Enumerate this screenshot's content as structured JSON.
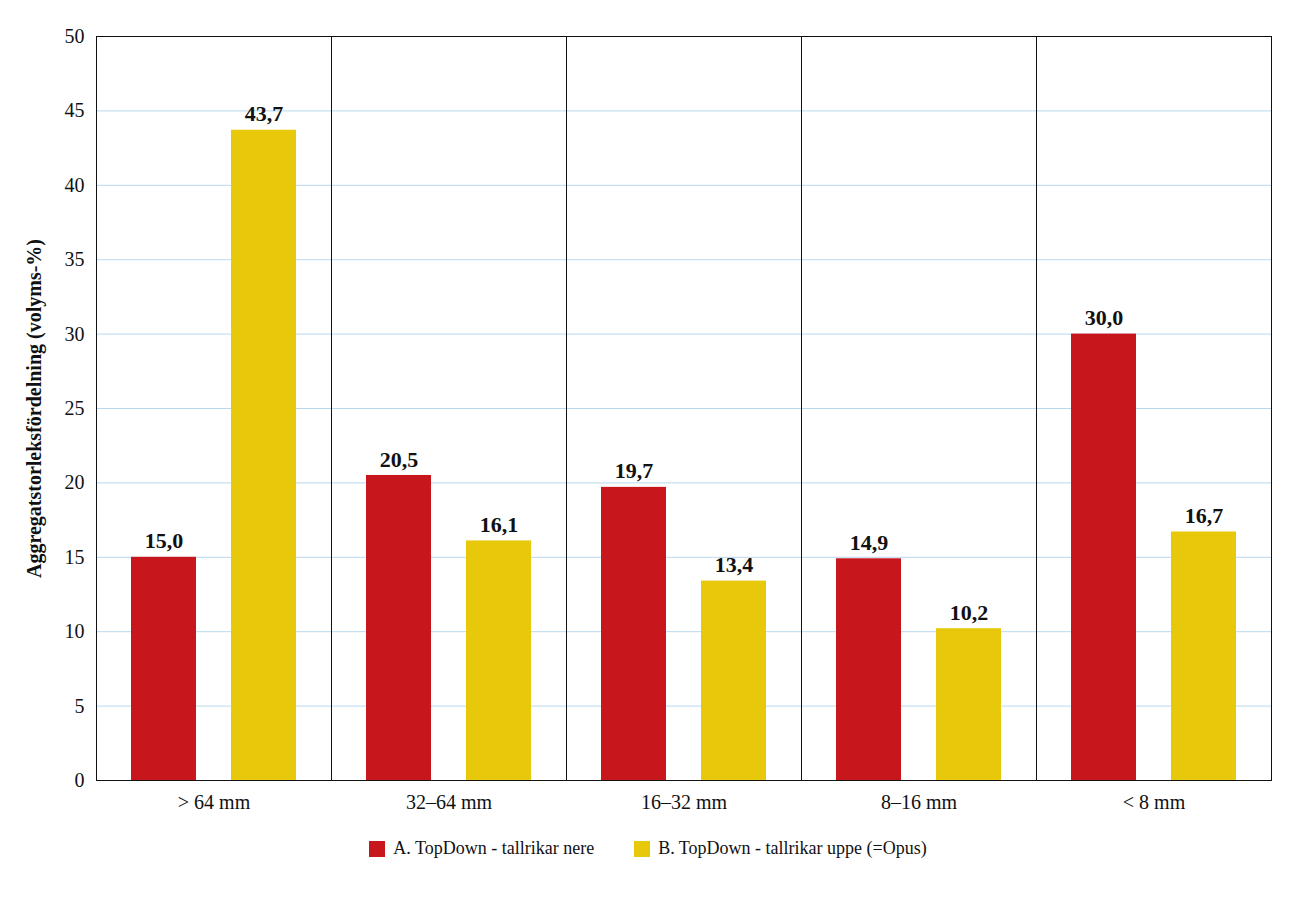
{
  "chart_data": {
    "type": "bar",
    "y_label": "Aggregatstorleksfördelning (volyms-%)",
    "categories": [
      "> 64 mm",
      "32–64 mm",
      "16–32 mm",
      "8–16 mm",
      "< 8 mm"
    ],
    "series": [
      {
        "name": "A. TopDown - tallrikar nere",
        "color": "#c8161d",
        "values": [
          15.0,
          20.5,
          19.7,
          14.9,
          30.0
        ],
        "value_labels": [
          "15,0",
          "20,5",
          "19,7",
          "14,9",
          "30,0"
        ]
      },
      {
        "name": "B. TopDown - tallrikar uppe (=Opus)",
        "color": "#e8c80a",
        "values": [
          43.7,
          16.1,
          13.4,
          10.2,
          16.7
        ],
        "value_labels": [
          "43,7",
          "16,1",
          "13,4",
          "10,2",
          "16,7"
        ]
      }
    ],
    "ylim": [
      0,
      50
    ],
    "yticks": [
      0,
      5,
      10,
      15,
      20,
      25,
      30,
      35,
      40,
      45,
      50
    ],
    "grid": true,
    "data_labels": true,
    "legend": "bottom"
  }
}
